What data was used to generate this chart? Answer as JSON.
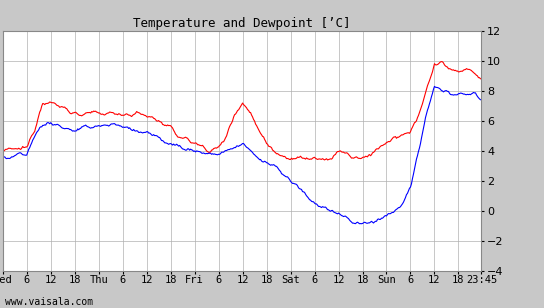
{
  "title": "Temperature and Dewpoint [’C]",
  "background_color": "#c8c8c8",
  "plot_bg_color": "#ffffff",
  "grid_color": "#b0b0b0",
  "temp_color": "#ff0000",
  "dewp_color": "#0000ff",
  "ylim": [
    -4,
    12
  ],
  "yticks": [
    -4,
    -2,
    0,
    2,
    4,
    6,
    8,
    10,
    12
  ],
  "watermark": "www.vaisala.com",
  "line_width": 0.8,
  "title_font": "monospace",
  "title_fontsize": 9
}
